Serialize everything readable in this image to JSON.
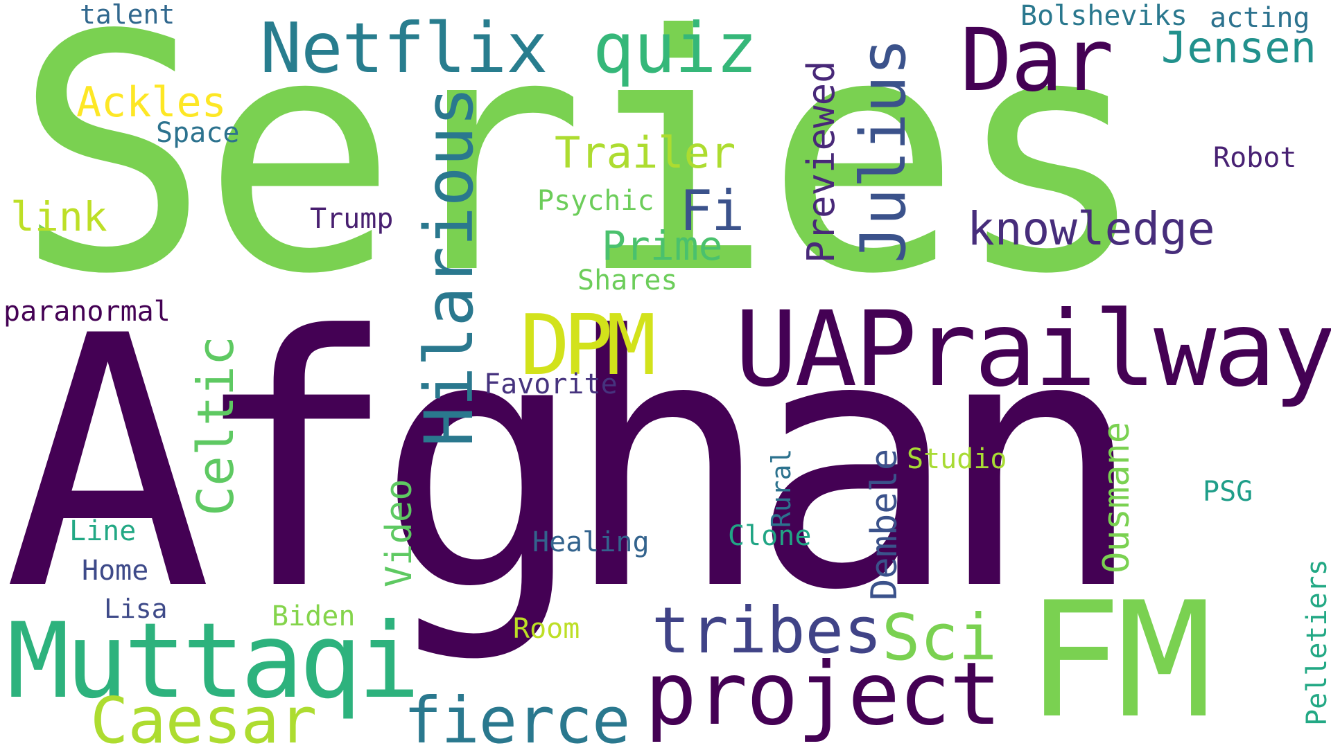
{
  "words": [
    {
      "id": "series",
      "text": "Series",
      "color": "#7ad151",
      "rotated": false
    },
    {
      "id": "afghan",
      "text": "Afghan",
      "color": "#440154",
      "rotated": false
    },
    {
      "id": "fm",
      "text": "FM",
      "color": "#7ad151",
      "rotated": false
    },
    {
      "id": "muttaqi",
      "text": "Muttaqi",
      "color": "#2db27d",
      "rotated": false
    },
    {
      "id": "uaprailway",
      "text": "UAPrailway",
      "color": "#440154",
      "rotated": false
    },
    {
      "id": "project",
      "text": "project",
      "color": "#440154",
      "rotated": false
    },
    {
      "id": "netflix",
      "text": "Netflix",
      "color": "#287d8e",
      "rotated": false
    },
    {
      "id": "dar",
      "text": "Dar",
      "color": "#440154",
      "rotated": false
    },
    {
      "id": "dpm",
      "text": "DPM",
      "color": "#d2e21b",
      "rotated": false
    },
    {
      "id": "quiz",
      "text": "quiz",
      "color": "#35b779",
      "rotated": false
    },
    {
      "id": "hilarious",
      "text": "Hilarious",
      "color": "#2a788e",
      "rotated": true
    },
    {
      "id": "julius",
      "text": "Julius",
      "color": "#3b528b",
      "rotated": true
    },
    {
      "id": "caesar",
      "text": "Caesar",
      "color": "#addc30",
      "rotated": false
    },
    {
      "id": "fierce",
      "text": "fierce",
      "color": "#2a788e",
      "rotated": false
    },
    {
      "id": "tribes",
      "text": "tribes",
      "color": "#404387",
      "rotated": false
    },
    {
      "id": "sci",
      "text": "Sci",
      "color": "#7ad151",
      "rotated": false
    },
    {
      "id": "celtic",
      "text": "Celtic",
      "color": "#5ec962",
      "rotated": true
    },
    {
      "id": "knowledge",
      "text": "knowledge",
      "color": "#472d7b",
      "rotated": false
    },
    {
      "id": "jensen",
      "text": "Jensen",
      "color": "#21918c",
      "rotated": false
    },
    {
      "id": "fi",
      "text": "Fi",
      "color": "#3b528b",
      "rotated": false
    },
    {
      "id": "previewed",
      "text": "Previewed",
      "color": "#482878",
      "rotated": true
    },
    {
      "id": "trailer",
      "text": "Trailer",
      "color": "#addc30",
      "rotated": false
    },
    {
      "id": "prime",
      "text": "Prime",
      "color": "#4ac16d",
      "rotated": false
    },
    {
      "id": "ackles",
      "text": "Ackles",
      "color": "#fde725",
      "rotated": false
    },
    {
      "id": "link",
      "text": "link",
      "color": "#bddf26",
      "rotated": false
    },
    {
      "id": "dembele",
      "text": "Dembele",
      "color": "#3b528b",
      "rotated": true
    },
    {
      "id": "ousmane",
      "text": "Ousmane",
      "color": "#7ad151",
      "rotated": true
    },
    {
      "id": "video",
      "text": "Video",
      "color": "#5ec962",
      "rotated": true
    },
    {
      "id": "bolsheviks",
      "text": "Bolsheviks",
      "color": "#2a788e",
      "rotated": false
    },
    {
      "id": "acting",
      "text": "acting",
      "color": "#2c728e",
      "rotated": false
    },
    {
      "id": "talent",
      "text": "talent",
      "color": "#31688e",
      "rotated": false
    },
    {
      "id": "space",
      "text": "Space",
      "color": "#2c728e",
      "rotated": false
    },
    {
      "id": "psychic",
      "text": "Psychic",
      "color": "#6ccd5a",
      "rotated": false
    },
    {
      "id": "trump",
      "text": "Trump",
      "color": "#481f70",
      "rotated": false
    },
    {
      "id": "robot",
      "text": "Robot",
      "color": "#482173",
      "rotated": false
    },
    {
      "id": "shares",
      "text": "Shares",
      "color": "#6ccd5a",
      "rotated": false
    },
    {
      "id": "paranormal",
      "text": "paranormal",
      "color": "#440154",
      "rotated": false
    },
    {
      "id": "favorite",
      "text": "Favorite",
      "color": "#46337e",
      "rotated": false
    },
    {
      "id": "studio",
      "text": "Studio",
      "color": "#a8db34",
      "rotated": false
    },
    {
      "id": "rural",
      "text": "Rural",
      "color": "#2c728e",
      "rotated": true
    },
    {
      "id": "psg",
      "text": "PSG",
      "color": "#1f9e89",
      "rotated": false
    },
    {
      "id": "line",
      "text": "Line",
      "color": "#22a884",
      "rotated": false
    },
    {
      "id": "healing",
      "text": "Healing",
      "color": "#33638d",
      "rotated": false
    },
    {
      "id": "clone",
      "text": "Clone",
      "color": "#21a585",
      "rotated": false
    },
    {
      "id": "home",
      "text": "Home",
      "color": "#3e4a89",
      "rotated": false
    },
    {
      "id": "lisa",
      "text": "Lisa",
      "color": "#3e4a89",
      "rotated": false
    },
    {
      "id": "biden",
      "text": "Biden",
      "color": "#84d44b",
      "rotated": false
    },
    {
      "id": "room",
      "text": "Room",
      "color": "#bddf26",
      "rotated": false
    },
    {
      "id": "pelletiers",
      "text": "Pelletiers",
      "color": "#22a884",
      "rotated": true
    }
  ]
}
